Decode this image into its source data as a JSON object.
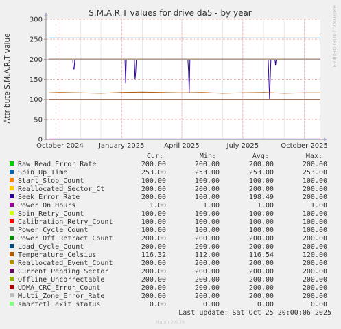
{
  "chart_data": {
    "type": "line",
    "title": "S.M.A.R.T values for drive da5 - by year",
    "ylabel": "Attribute S.M.A.R.T value",
    "side_text": "RRDTOOL / TOBI OETIKER",
    "ylim": [
      0,
      300
    ],
    "y_ticks": [
      0,
      50,
      100,
      150,
      200,
      250,
      300
    ],
    "x_range": [
      "2024-09-10",
      "2025-10-25"
    ],
    "x_ticks": [
      {
        "date": "2024-10-01",
        "label": "October 2024"
      },
      {
        "date": "2025-01-01",
        "label": "January 2025"
      },
      {
        "date": "2025-04-01",
        "label": "April 2025"
      },
      {
        "date": "2025-07-01",
        "label": "July 2025"
      },
      {
        "date": "2025-10-01",
        "label": "October 2025"
      }
    ],
    "grid": true,
    "legend_headers": {
      "cur": "Cur:",
      "min": "Min:",
      "avg": "Avg:",
      "max": "Max:"
    },
    "series": [
      {
        "name": "Raw_Read_Error_Rate",
        "color": "#00cc00",
        "cur": "200.00",
        "min": "200.00",
        "avg": "200.00",
        "max": "200.00",
        "points": [
          [
            "2024-09-14",
            200
          ],
          [
            "2025-10-25",
            200
          ]
        ]
      },
      {
        "name": "Spin_Up_Time",
        "color": "#0066b3",
        "cur": "253.00",
        "min": "253.00",
        "avg": "253.00",
        "max": "253.00",
        "points": [
          [
            "2024-09-14",
            253
          ],
          [
            "2025-10-25",
            253
          ]
        ]
      },
      {
        "name": "Start_Stop_Count",
        "color": "#ff8000",
        "cur": "100.00",
        "min": "100.00",
        "avg": "100.00",
        "max": "100.00",
        "points": [
          [
            "2024-09-14",
            100
          ],
          [
            "2025-10-25",
            100
          ]
        ]
      },
      {
        "name": "Reallocated_Sector_Ct",
        "color": "#ffcc00",
        "cur": "200.00",
        "min": "200.00",
        "avg": "200.00",
        "max": "200.00",
        "points": [
          [
            "2024-09-14",
            200
          ],
          [
            "2025-10-25",
            200
          ]
        ]
      },
      {
        "name": "Seek_Error_Rate",
        "color": "#330099",
        "cur": "200.00",
        "min": "100.00",
        "avg": "198.49",
        "max": "200.00",
        "points": [
          [
            "2024-09-14",
            200
          ],
          [
            "2024-10-20",
            200
          ],
          [
            "2024-10-21",
            175
          ],
          [
            "2024-10-22",
            175
          ],
          [
            "2024-10-23",
            200
          ],
          [
            "2025-01-06",
            200
          ],
          [
            "2025-01-07",
            140
          ],
          [
            "2025-01-08",
            200
          ],
          [
            "2025-01-20",
            200
          ],
          [
            "2025-01-21",
            150
          ],
          [
            "2025-01-22",
            165
          ],
          [
            "2025-01-23",
            200
          ],
          [
            "2025-04-10",
            200
          ],
          [
            "2025-04-11",
            170
          ],
          [
            "2025-04-12",
            115
          ],
          [
            "2025-04-13",
            200
          ],
          [
            "2025-08-08",
            200
          ],
          [
            "2025-08-10",
            100
          ],
          [
            "2025-08-12",
            200
          ],
          [
            "2025-08-18",
            200
          ],
          [
            "2025-08-19",
            185
          ],
          [
            "2025-08-20",
            200
          ],
          [
            "2025-10-25",
            200
          ]
        ]
      },
      {
        "name": "Power_On_Hours",
        "color": "#990099",
        "cur": "1.00",
        "min": "1.00",
        "avg": "1.00",
        "max": "1.00",
        "points": [
          [
            "2024-09-14",
            1
          ],
          [
            "2025-10-25",
            1
          ]
        ]
      },
      {
        "name": "Spin_Retry_Count",
        "color": "#ccff00",
        "cur": "100.00",
        "min": "100.00",
        "avg": "100.00",
        "max": "100.00",
        "points": [
          [
            "2024-09-14",
            100
          ],
          [
            "2025-10-25",
            100
          ]
        ]
      },
      {
        "name": "Calibration_Retry_Count",
        "color": "#ff0000",
        "cur": "100.00",
        "min": "100.00",
        "avg": "100.00",
        "max": "100.00",
        "points": [
          [
            "2024-09-14",
            100
          ],
          [
            "2025-10-25",
            100
          ]
        ]
      },
      {
        "name": "Power_Cycle_Count",
        "color": "#808080",
        "cur": "100.00",
        "min": "100.00",
        "avg": "100.00",
        "max": "100.00",
        "points": [
          [
            "2024-09-14",
            100
          ],
          [
            "2025-10-25",
            100
          ]
        ]
      },
      {
        "name": "Power_Off_Retract_Count",
        "color": "#008f00",
        "cur": "200.00",
        "min": "200.00",
        "avg": "200.00",
        "max": "200.00",
        "points": [
          [
            "2024-09-14",
            200
          ],
          [
            "2025-10-25",
            200
          ]
        ]
      },
      {
        "name": "Load_Cycle_Count",
        "color": "#00487d",
        "cur": "200.00",
        "min": "200.00",
        "avg": "200.00",
        "max": "200.00",
        "points": [
          [
            "2024-09-14",
            200
          ],
          [
            "2025-10-25",
            200
          ]
        ]
      },
      {
        "name": "Temperature_Celsius",
        "color": "#b35a00",
        "cur": "116.32",
        "min": "112.00",
        "avg": "116.54",
        "max": "120.00",
        "points": [
          [
            "2024-09-14",
            116
          ],
          [
            "2024-10-01",
            117
          ],
          [
            "2024-11-01",
            116
          ],
          [
            "2024-12-01",
            115
          ],
          [
            "2025-01-01",
            117
          ],
          [
            "2025-02-01",
            118
          ],
          [
            "2025-03-01",
            117
          ],
          [
            "2025-04-01",
            116
          ],
          [
            "2025-05-01",
            117
          ],
          [
            "2025-06-01",
            115
          ],
          [
            "2025-07-01",
            116
          ],
          [
            "2025-08-01",
            117
          ],
          [
            "2025-09-01",
            115
          ],
          [
            "2025-10-01",
            116
          ],
          [
            "2025-10-25",
            116
          ]
        ]
      },
      {
        "name": "Reallocated_Event_Count",
        "color": "#b38f00",
        "cur": "200.00",
        "min": "200.00",
        "avg": "200.00",
        "max": "200.00",
        "points": [
          [
            "2024-09-14",
            200
          ],
          [
            "2025-10-25",
            200
          ]
        ]
      },
      {
        "name": "Current_Pending_Sector",
        "color": "#6b006b",
        "cur": "200.00",
        "min": "200.00",
        "avg": "200.00",
        "max": "200.00",
        "points": [
          [
            "2024-09-14",
            200
          ],
          [
            "2025-10-25",
            200
          ]
        ]
      },
      {
        "name": "Offline_Uncorrectable",
        "color": "#8fb300",
        "cur": "200.00",
        "min": "200.00",
        "avg": "200.00",
        "max": "200.00",
        "points": [
          [
            "2024-09-14",
            200
          ],
          [
            "2025-10-25",
            200
          ]
        ]
      },
      {
        "name": "UDMA_CRC_Error_Count",
        "color": "#b30000",
        "cur": "200.00",
        "min": "200.00",
        "avg": "200.00",
        "max": "200.00",
        "points": [
          [
            "2024-09-14",
            200
          ],
          [
            "2025-10-25",
            200
          ]
        ]
      },
      {
        "name": "Multi_Zone_Error_Rate",
        "color": "#bebebe",
        "cur": "200.00",
        "min": "200.00",
        "avg": "200.00",
        "max": "200.00",
        "points": [
          [
            "2024-09-14",
            200
          ],
          [
            "2025-10-25",
            200
          ]
        ]
      },
      {
        "name": "smartctl_exit_status",
        "color": "#80ff80",
        "cur": "0.00",
        "min": "0.00",
        "avg": "0.00",
        "max": "0.00",
        "points": [
          [
            "2024-09-14",
            0
          ],
          [
            "2025-10-25",
            0
          ]
        ]
      }
    ],
    "last_update": "Last update: Sat Oct 25 20:00:06 2025",
    "footer": "Munin 2.0.76"
  }
}
